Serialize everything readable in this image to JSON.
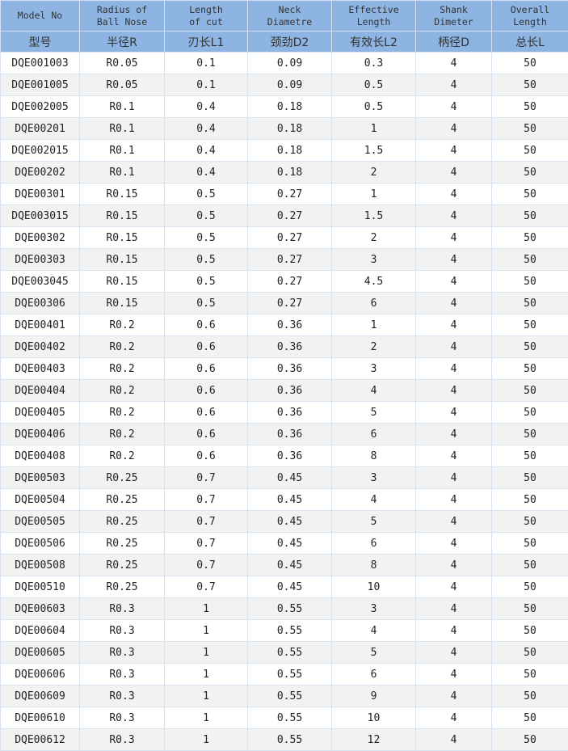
{
  "columns": [
    {
      "en": "Model No",
      "cn": "型号"
    },
    {
      "en": "Radius of\nBall Nose",
      "cn": "半径R"
    },
    {
      "en": "Length\nof cut",
      "cn": "刃长L1"
    },
    {
      "en": "Neck\nDiametre",
      "cn": "颈劲D2"
    },
    {
      "en": "Effective\nLength",
      "cn": "有效长L2"
    },
    {
      "en": "Shank\nDimeter",
      "cn": "柄径D"
    },
    {
      "en": "Overall\nLength",
      "cn": "总长L"
    }
  ],
  "rows": [
    [
      "DQE001003",
      "R0.05",
      "0.1",
      "0.09",
      "0.3",
      "4",
      "50"
    ],
    [
      "DQE001005",
      "R0.05",
      "0.1",
      "0.09",
      "0.5",
      "4",
      "50"
    ],
    [
      "DQE002005",
      "R0.1",
      "0.4",
      "0.18",
      "0.5",
      "4",
      "50"
    ],
    [
      "DQE00201",
      "R0.1",
      "0.4",
      "0.18",
      "1",
      "4",
      "50"
    ],
    [
      "DQE002015",
      "R0.1",
      "0.4",
      "0.18",
      "1.5",
      "4",
      "50"
    ],
    [
      "DQE00202",
      "R0.1",
      "0.4",
      "0.18",
      "2",
      "4",
      "50"
    ],
    [
      "DQE00301",
      "R0.15",
      "0.5",
      "0.27",
      "1",
      "4",
      "50"
    ],
    [
      "DQE003015",
      "R0.15",
      "0.5",
      "0.27",
      "1.5",
      "4",
      "50"
    ],
    [
      "DQE00302",
      "R0.15",
      "0.5",
      "0.27",
      "2",
      "4",
      "50"
    ],
    [
      "DQE00303",
      "R0.15",
      "0.5",
      "0.27",
      "3",
      "4",
      "50"
    ],
    [
      "DQE003045",
      "R0.15",
      "0.5",
      "0.27",
      "4.5",
      "4",
      "50"
    ],
    [
      "DQE00306",
      "R0.15",
      "0.5",
      "0.27",
      "6",
      "4",
      "50"
    ],
    [
      "DQE00401",
      "R0.2",
      "0.6",
      "0.36",
      "1",
      "4",
      "50"
    ],
    [
      "DQE00402",
      "R0.2",
      "0.6",
      "0.36",
      "2",
      "4",
      "50"
    ],
    [
      "DQE00403",
      "R0.2",
      "0.6",
      "0.36",
      "3",
      "4",
      "50"
    ],
    [
      "DQE00404",
      "R0.2",
      "0.6",
      "0.36",
      "4",
      "4",
      "50"
    ],
    [
      "DQE00405",
      "R0.2",
      "0.6",
      "0.36",
      "5",
      "4",
      "50"
    ],
    [
      "DQE00406",
      "R0.2",
      "0.6",
      "0.36",
      "6",
      "4",
      "50"
    ],
    [
      "DQE00408",
      "R0.2",
      "0.6",
      "0.36",
      "8",
      "4",
      "50"
    ],
    [
      "DQE00503",
      "R0.25",
      "0.7",
      "0.45",
      "3",
      "4",
      "50"
    ],
    [
      "DQE00504",
      "R0.25",
      "0.7",
      "0.45",
      "4",
      "4",
      "50"
    ],
    [
      "DQE00505",
      "R0.25",
      "0.7",
      "0.45",
      "5",
      "4",
      "50"
    ],
    [
      "DQE00506",
      "R0.25",
      "0.7",
      "0.45",
      "6",
      "4",
      "50"
    ],
    [
      "DQE00508",
      "R0.25",
      "0.7",
      "0.45",
      "8",
      "4",
      "50"
    ],
    [
      "DQE00510",
      "R0.25",
      "0.7",
      "0.45",
      "10",
      "4",
      "50"
    ],
    [
      "DQE00603",
      "R0.3",
      "1",
      "0.55",
      "3",
      "4",
      "50"
    ],
    [
      "DQE00604",
      "R0.3",
      "1",
      "0.55",
      "4",
      "4",
      "50"
    ],
    [
      "DQE00605",
      "R0.3",
      "1",
      "0.55",
      "5",
      "4",
      "50"
    ],
    [
      "DQE00606",
      "R0.3",
      "1",
      "0.55",
      "6",
      "4",
      "50"
    ],
    [
      "DQE00609",
      "R0.3",
      "1",
      "0.55",
      "9",
      "4",
      "50"
    ],
    [
      "DQE00610",
      "R0.3",
      "1",
      "0.55",
      "10",
      "4",
      "50"
    ],
    [
      "DQE00612",
      "R0.3",
      "1",
      "0.55",
      "12",
      "4",
      "50"
    ]
  ]
}
